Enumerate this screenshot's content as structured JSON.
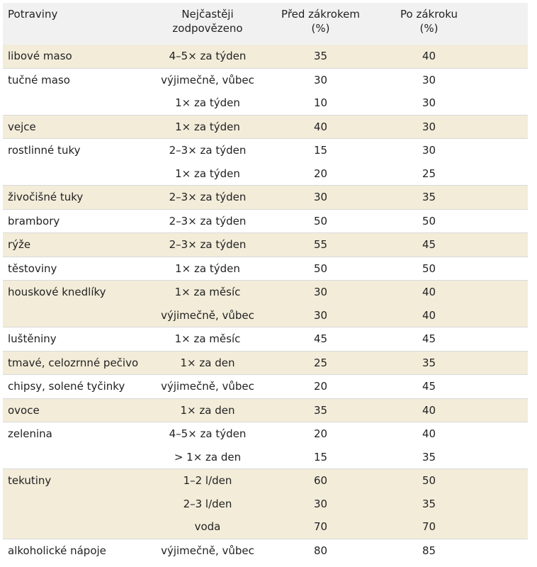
{
  "table": {
    "headers": {
      "food": "Potraviny",
      "answer_l1": "Nejčastěji",
      "answer_l2": "zodpovězeno",
      "before_l1": "Před zákrokem",
      "before_l2": "(%)",
      "after_l1": "Po zákroku",
      "after_l2": "(%)"
    },
    "rows": [
      {
        "food": "libové maso",
        "answer": "4–5× za týden",
        "before": "35",
        "after": "40"
      },
      {
        "food": "tučné maso",
        "answer": "výjimečně, vůbec",
        "before": "30",
        "after": "30"
      },
      {
        "food": "",
        "answer": "1× za týden",
        "before": "10",
        "after": "30"
      },
      {
        "food": "vejce",
        "answer": "1× za týden",
        "before": "40",
        "after": "30"
      },
      {
        "food": "rostlinné tuky",
        "answer": "2–3× za týden",
        "before": "15",
        "after": "30"
      },
      {
        "food": "",
        "answer": "1× za týden",
        "before": "20",
        "after": "25"
      },
      {
        "food": "živočišné tuky",
        "answer": "2–3× za týden",
        "before": "30",
        "after": "35"
      },
      {
        "food": "brambory",
        "answer": "2–3× za týden",
        "before": "50",
        "after": "50"
      },
      {
        "food": "rýže",
        "answer": "2–3× za týden",
        "before": "55",
        "after": "45"
      },
      {
        "food": "těstoviny",
        "answer": "1× za týden",
        "before": "50",
        "after": "50"
      },
      {
        "food": "houskové knedlíky",
        "answer": "1× za měsíc",
        "before": "30",
        "after": "40"
      },
      {
        "food": "",
        "answer": "výjimečně, vůbec",
        "before": "30",
        "after": "40"
      },
      {
        "food": "luštěniny",
        "answer": "1× za měsíc",
        "before": "45",
        "after": "45"
      },
      {
        "food": "tmavé, celozrnné pečivo",
        "answer": "1× za den",
        "before": "25",
        "after": "35"
      },
      {
        "food": "chipsy, solené tyčinky",
        "answer": "výjimečně, vůbec",
        "before": "20",
        "after": "45"
      },
      {
        "food": "ovoce",
        "answer": "1× za den",
        "before": "35",
        "after": "40"
      },
      {
        "food": "zelenina",
        "answer": "4–5× za týden",
        "before": "20",
        "after": "40"
      },
      {
        "food": "",
        "answer": "> 1× za den",
        "before": "15",
        "after": "35"
      },
      {
        "food": "tekutiny",
        "answer": "1–2 l/den",
        "before": "60",
        "after": "50"
      },
      {
        "food": "",
        "answer": "2–3 l/den",
        "before": "30",
        "after": "35"
      },
      {
        "food": "",
        "answer": "voda",
        "before": "70",
        "after": "70"
      },
      {
        "food": "alkoholické nápoje",
        "answer": "výjimečně, vůbec",
        "before": "80",
        "after": "85"
      }
    ]
  }
}
